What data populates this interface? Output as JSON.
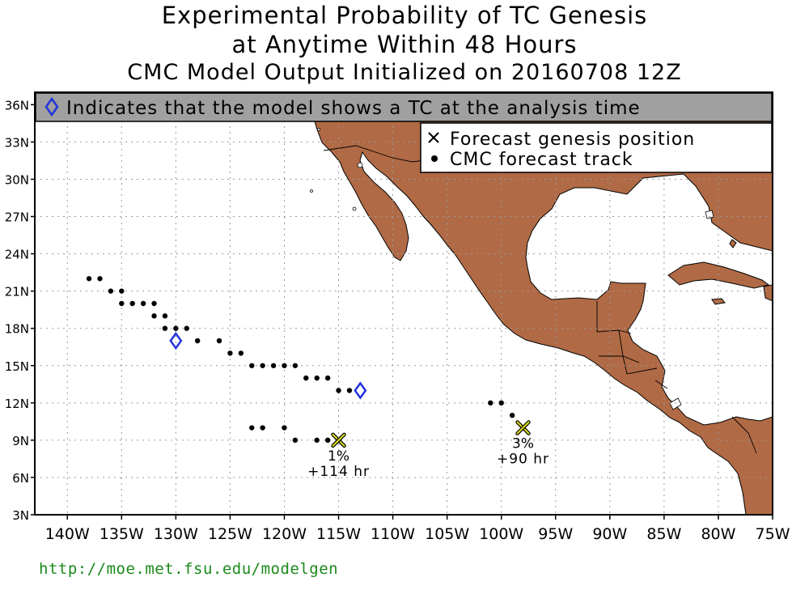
{
  "title": {
    "line1": "Experimental Probability of TC Genesis",
    "line2": "at Anytime Within 48 Hours",
    "line3": "CMC Model Output Initialized on 20160708 12Z"
  },
  "banner": {
    "icon": "diamond-icon",
    "text": "Indicates that the model shows a TC at the analysis time"
  },
  "legend": {
    "items": [
      {
        "icon": "x-marker-icon",
        "symbol": "×",
        "label": "Forecast genesis position"
      },
      {
        "icon": "dot-marker-icon",
        "symbol": "●",
        "label": "CMC forecast track"
      }
    ]
  },
  "axes": {
    "lat_labels": [
      "3N",
      "6N",
      "9N",
      "12N",
      "15N",
      "18N",
      "21N",
      "24N",
      "27N",
      "30N",
      "33N",
      "36N"
    ],
    "lon_labels": [
      "140W",
      "135W",
      "130W",
      "125W",
      "120W",
      "115W",
      "110W",
      "105W",
      "100W",
      "95W",
      "90W",
      "85W",
      "80W",
      "75W"
    ]
  },
  "colors": {
    "land": "#b06a45",
    "ocean": "#ffffff",
    "banner_bg": "#a0a0a0",
    "diamond": "#2233dd",
    "genesis_x": "#d8d820",
    "url": "#1a8a1a"
  },
  "track_points": [
    {
      "lon": -138,
      "lat": 22
    },
    {
      "lon": -137,
      "lat": 22
    },
    {
      "lon": -136,
      "lat": 21
    },
    {
      "lon": -135,
      "lat": 21
    },
    {
      "lon": -135,
      "lat": 20
    },
    {
      "lon": -134,
      "lat": 20
    },
    {
      "lon": -133,
      "lat": 20
    },
    {
      "lon": -132,
      "lat": 20
    },
    {
      "lon": -132,
      "lat": 19
    },
    {
      "lon": -131,
      "lat": 19
    },
    {
      "lon": -131,
      "lat": 18
    },
    {
      "lon": -130,
      "lat": 18
    },
    {
      "lon": -129,
      "lat": 18
    },
    {
      "lon": -128,
      "lat": 17
    },
    {
      "lon": -126,
      "lat": 17
    },
    {
      "lon": -125,
      "lat": 16
    },
    {
      "lon": -124,
      "lat": 16
    },
    {
      "lon": -123,
      "lat": 15
    },
    {
      "lon": -122,
      "lat": 15
    },
    {
      "lon": -121,
      "lat": 15
    },
    {
      "lon": -120,
      "lat": 15
    },
    {
      "lon": -119,
      "lat": 15
    },
    {
      "lon": -118,
      "lat": 14
    },
    {
      "lon": -117,
      "lat": 14
    },
    {
      "lon": -116,
      "lat": 14
    },
    {
      "lon": -115,
      "lat": 13
    },
    {
      "lon": -114,
      "lat": 13
    },
    {
      "lon": -123,
      "lat": 10
    },
    {
      "lon": -122,
      "lat": 10
    },
    {
      "lon": -120,
      "lat": 10
    },
    {
      "lon": -119,
      "lat": 9
    },
    {
      "lon": -117,
      "lat": 9
    },
    {
      "lon": -116,
      "lat": 9
    },
    {
      "lon": -101,
      "lat": 12
    },
    {
      "lon": -100,
      "lat": 12
    },
    {
      "lon": -99,
      "lat": 11
    }
  ],
  "analysis_tcs": [
    {
      "lon": -130,
      "lat": 17
    },
    {
      "lon": -113,
      "lat": 13
    }
  ],
  "genesis": [
    {
      "lon": -115,
      "lat": 9,
      "prob": "1%",
      "lead": "+114 hr"
    },
    {
      "lon": -98,
      "lat": 10,
      "prob": "3%",
      "lead": "+90 hr"
    }
  ],
  "footer": {
    "url": "http://moe.met.fsu.edu/modelgen"
  }
}
